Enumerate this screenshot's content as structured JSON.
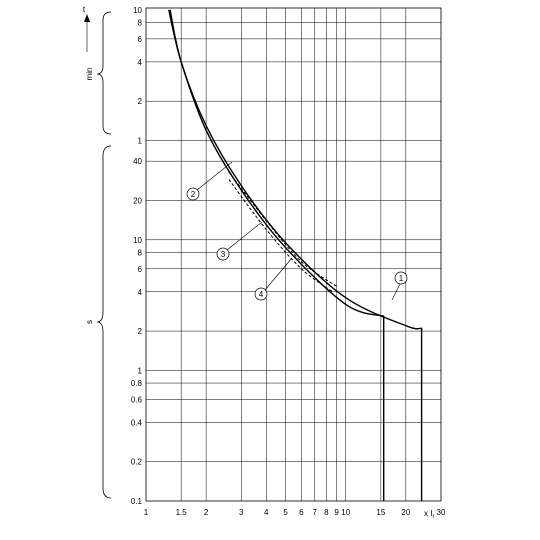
{
  "chart_data": {
    "type": "line",
    "scale": "log-log",
    "xlabel": "x I",
    "xlabel_sub": "r",
    "ylabel": "t",
    "y_group_min": "min",
    "y_group_s": "s",
    "xlim": [
      1,
      30
    ],
    "x_ticks": [
      {
        "v": 1,
        "label": "1"
      },
      {
        "v": 1.5,
        "label": "1.5"
      },
      {
        "v": 2,
        "label": "2"
      },
      {
        "v": 3,
        "label": "3"
      },
      {
        "v": 4,
        "label": "4"
      },
      {
        "v": 5,
        "label": "5"
      },
      {
        "v": 6,
        "label": "6"
      },
      {
        "v": 7,
        "label": "7"
      },
      {
        "v": 8,
        "label": "8"
      },
      {
        "v": 9,
        "label": "9"
      },
      {
        "v": 10,
        "label": "10"
      },
      {
        "v": 15,
        "label": "15"
      },
      {
        "v": 20,
        "label": "20"
      },
      {
        "v": 30,
        "label": "30"
      }
    ],
    "x_grid": [
      1.5,
      2,
      3,
      4,
      5,
      6,
      7,
      8,
      9,
      10,
      15,
      20
    ],
    "y_ticks_min": [
      {
        "v": 10,
        "label": "10"
      },
      {
        "v": 8,
        "label": "8"
      },
      {
        "v": 6,
        "label": "6"
      },
      {
        "v": 4,
        "label": "4"
      },
      {
        "v": 2,
        "label": "2"
      },
      {
        "v": 1,
        "label": "1"
      }
    ],
    "y_ticks_s": [
      {
        "v": 40,
        "label": "40"
      },
      {
        "v": 20,
        "label": "20"
      },
      {
        "v": 10,
        "label": "10"
      },
      {
        "v": 8,
        "label": "8"
      },
      {
        "v": 6,
        "label": "6"
      },
      {
        "v": 4,
        "label": "4"
      },
      {
        "v": 2,
        "label": "2"
      },
      {
        "v": 1,
        "label": "1"
      },
      {
        "v": 0.8,
        "label": "0.8"
      },
      {
        "v": 0.6,
        "label": "0.6"
      },
      {
        "v": 0.4,
        "label": "0.4"
      },
      {
        "v": 0.2,
        "label": "0.2"
      },
      {
        "v": 0.1,
        "label": "0.1"
      }
    ],
    "series": [
      {
        "label": "1",
        "unit": "seconds",
        "style": "solid",
        "points": [
          [
            1.32,
            600
          ],
          [
            1.5,
            240
          ],
          [
            2,
            78
          ],
          [
            3,
            26
          ],
          [
            5,
            9.5
          ],
          [
            10,
            3.6
          ],
          [
            20,
            2.2
          ],
          [
            24,
            2.1
          ],
          [
            24,
            0.1
          ]
        ]
      },
      {
        "label": "2",
        "unit": "seconds",
        "style": "solid",
        "points": [
          [
            1.3,
            600
          ],
          [
            1.5,
            240
          ],
          [
            2,
            72
          ],
          [
            3,
            24
          ],
          [
            5,
            8.7
          ],
          [
            10,
            3.2
          ],
          [
            15.5,
            2.6
          ],
          [
            15.5,
            0.1
          ]
        ]
      },
      {
        "label": "3",
        "unit": "seconds",
        "style": "dashed",
        "points": [
          [
            2.6,
            33
          ],
          [
            4,
            14
          ],
          [
            6,
            6.8
          ],
          [
            9,
            4.4
          ]
        ]
      },
      {
        "label": "4",
        "unit": "seconds",
        "style": "dashed",
        "points": [
          [
            2.6,
            29
          ],
          [
            4,
            12
          ],
          [
            6,
            6
          ],
          [
            8.6,
            4
          ]
        ]
      }
    ]
  }
}
